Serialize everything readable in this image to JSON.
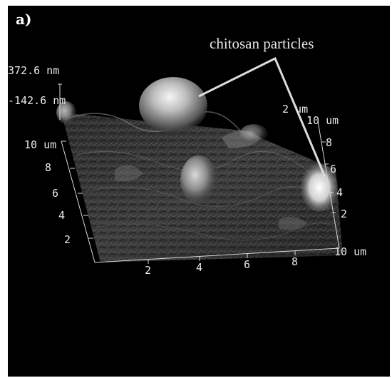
{
  "panel_label": "a)",
  "annotation": "chitosan particles",
  "z_scale": {
    "max": "372.6 nm",
    "min": "-142.6 nm",
    "overlap_label": "2 um"
  },
  "left_axis": {
    "ticks": [
      "10 um",
      "8",
      "6",
      "4",
      "2"
    ]
  },
  "bottom_axis": {
    "ticks": [
      "2",
      "4",
      "6",
      "8",
      "10 um"
    ]
  },
  "right_axis": {
    "ticks": [
      "10 um",
      "8",
      "6",
      "4",
      "2"
    ]
  },
  "colors": {
    "background": "#000000",
    "surface": "#4a4a4a",
    "highlight": "#f2f2f2",
    "axis": "#d8d8d8"
  }
}
